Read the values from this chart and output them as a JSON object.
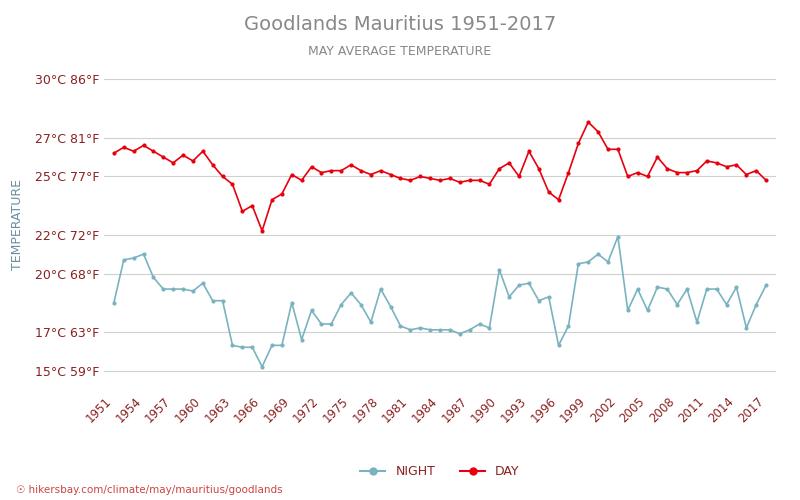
{
  "title": "Goodlands Mauritius 1951-2017",
  "subtitle": "MAY AVERAGE TEMPERATURE",
  "ylabel": "TEMPERATURE",
  "xlabel_url": "hikersbay.com/climate/may/mauritius/goodlands",
  "years": [
    1951,
    1952,
    1953,
    1954,
    1955,
    1956,
    1957,
    1958,
    1959,
    1960,
    1961,
    1962,
    1963,
    1964,
    1965,
    1966,
    1967,
    1968,
    1969,
    1970,
    1971,
    1972,
    1973,
    1974,
    1975,
    1976,
    1977,
    1978,
    1979,
    1980,
    1981,
    1982,
    1983,
    1984,
    1985,
    1986,
    1987,
    1988,
    1989,
    1990,
    1991,
    1992,
    1993,
    1994,
    1995,
    1996,
    1997,
    1998,
    1999,
    2000,
    2001,
    2002,
    2003,
    2004,
    2005,
    2006,
    2007,
    2008,
    2009,
    2010,
    2011,
    2012,
    2013,
    2014,
    2015,
    2016,
    2017
  ],
  "day_temps": [
    26.2,
    26.5,
    26.3,
    26.6,
    26.3,
    26.0,
    25.7,
    26.1,
    25.8,
    26.3,
    25.6,
    25.0,
    24.6,
    23.2,
    23.5,
    22.2,
    23.8,
    24.1,
    25.1,
    24.8,
    25.5,
    25.2,
    25.3,
    25.3,
    25.6,
    25.3,
    25.1,
    25.3,
    25.1,
    24.9,
    24.8,
    25.0,
    24.9,
    24.8,
    24.9,
    24.7,
    24.8,
    24.8,
    24.6,
    25.4,
    25.7,
    25.0,
    26.3,
    25.4,
    24.2,
    23.8,
    25.2,
    26.7,
    27.8,
    27.3,
    26.4,
    26.4,
    25.0,
    25.2,
    25.0,
    26.0,
    25.4,
    25.2,
    25.2,
    25.3,
    25.8,
    25.7,
    25.5,
    25.6,
    25.1,
    25.3,
    24.8
  ],
  "night_temps": [
    18.5,
    20.7,
    20.8,
    21.0,
    19.8,
    19.2,
    19.2,
    19.2,
    19.1,
    19.5,
    18.6,
    18.6,
    16.3,
    16.2,
    16.2,
    15.2,
    16.3,
    16.3,
    18.5,
    16.6,
    18.1,
    17.4,
    17.4,
    18.4,
    19.0,
    18.4,
    17.5,
    19.2,
    18.3,
    17.3,
    17.1,
    17.2,
    17.1,
    17.1,
    17.1,
    16.9,
    17.1,
    17.4,
    17.2,
    20.2,
    18.8,
    19.4,
    19.5,
    18.6,
    18.8,
    16.3,
    17.3,
    20.5,
    20.6,
    21.0,
    20.6,
    21.9,
    18.1,
    19.2,
    18.1,
    19.3,
    19.2,
    18.4,
    19.2,
    17.5,
    19.2,
    19.2,
    18.4,
    19.3,
    17.2,
    18.4,
    19.4
  ],
  "yticks_c": [
    15,
    17,
    20,
    22,
    25,
    27,
    30
  ],
  "ytick_labels": [
    "15°C 59°F",
    "17°C 63°F",
    "20°C 68°F",
    "22°C 72°F",
    "25°C 77°F",
    "27°C 81°F",
    "30°C 86°F"
  ],
  "day_color": "#e8000d",
  "night_color": "#7ab3c0",
  "title_color": "#888888",
  "subtitle_color": "#888888",
  "ylabel_color": "#6b8fa0",
  "tick_label_color": "#8b2020",
  "grid_color": "#d0d0d0",
  "background_color": "#ffffff",
  "legend_night": "NIGHT",
  "legend_day": "DAY",
  "url_color": "#cc4444",
  "xtick_years": [
    1951,
    1954,
    1957,
    1960,
    1963,
    1966,
    1969,
    1972,
    1975,
    1978,
    1981,
    1984,
    1987,
    1990,
    1993,
    1996,
    1999,
    2002,
    2005,
    2008,
    2011,
    2014,
    2017
  ]
}
